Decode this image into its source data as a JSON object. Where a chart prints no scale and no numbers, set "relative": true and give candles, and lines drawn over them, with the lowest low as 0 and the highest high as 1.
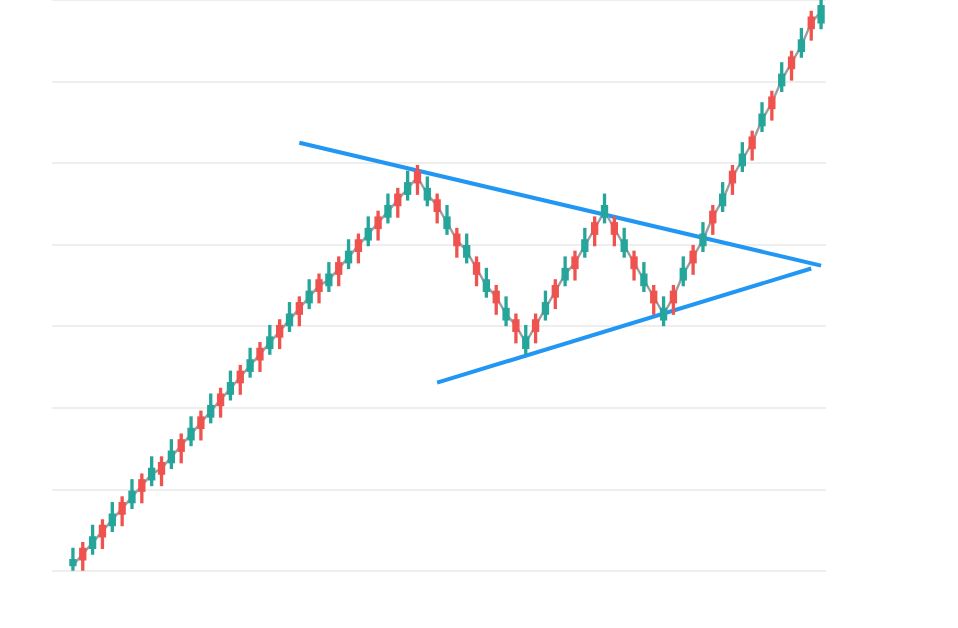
{
  "chart_data": {
    "type": "candlestick",
    "relative": true,
    "grid": "y",
    "categories": [
      null,
      null,
      null,
      null,
      null,
      null,
      null,
      null,
      null,
      null,
      null,
      null,
      null,
      null,
      null,
      null,
      null,
      null,
      null,
      null,
      null,
      null,
      null,
      null,
      null,
      null,
      null,
      null,
      null,
      null,
      null,
      null,
      null,
      null,
      null,
      null,
      null,
      null,
      null,
      null,
      null,
      null,
      null,
      null,
      null,
      null,
      null,
      null,
      null,
      null,
      null,
      null,
      null,
      null,
      null,
      null,
      null,
      null,
      null,
      null,
      null,
      null,
      null,
      null,
      null,
      null,
      null,
      null,
      null,
      null,
      null,
      null,
      null,
      null,
      null,
      null,
      null
    ],
    "ohlc": [
      [
        0.01,
        0.04,
        0.0,
        0.02
      ],
      [
        0.04,
        0.05,
        0.0,
        0.02
      ],
      [
        0.04,
        0.08,
        0.03,
        0.06
      ],
      [
        0.08,
        0.09,
        0.04,
        0.06
      ],
      [
        0.08,
        0.12,
        0.07,
        0.1
      ],
      [
        0.12,
        0.13,
        0.08,
        0.1
      ],
      [
        0.12,
        0.16,
        0.11,
        0.14
      ],
      [
        0.16,
        0.17,
        0.12,
        0.14
      ],
      [
        0.16,
        0.2,
        0.15,
        0.18
      ],
      [
        0.19,
        0.2,
        0.15,
        0.17
      ],
      [
        0.19,
        0.23,
        0.18,
        0.21
      ],
      [
        0.23,
        0.24,
        0.19,
        0.21
      ],
      [
        0.23,
        0.27,
        0.22,
        0.25
      ],
      [
        0.27,
        0.28,
        0.23,
        0.25
      ],
      [
        0.27,
        0.31,
        0.26,
        0.29
      ],
      [
        0.31,
        0.32,
        0.27,
        0.29
      ],
      [
        0.31,
        0.35,
        0.3,
        0.33
      ],
      [
        0.35,
        0.36,
        0.31,
        0.33
      ],
      [
        0.35,
        0.39,
        0.34,
        0.37
      ],
      [
        0.39,
        0.4,
        0.35,
        0.37
      ],
      [
        0.39,
        0.43,
        0.38,
        0.41
      ],
      [
        0.43,
        0.44,
        0.39,
        0.41
      ],
      [
        0.43,
        0.47,
        0.42,
        0.45
      ],
      [
        0.47,
        0.48,
        0.43,
        0.45
      ],
      [
        0.47,
        0.51,
        0.46,
        0.49
      ],
      [
        0.51,
        0.52,
        0.47,
        0.49
      ],
      [
        0.5,
        0.54,
        0.49,
        0.52
      ],
      [
        0.54,
        0.55,
        0.5,
        0.52
      ],
      [
        0.54,
        0.58,
        0.53,
        0.56
      ],
      [
        0.58,
        0.59,
        0.54,
        0.56
      ],
      [
        0.58,
        0.62,
        0.57,
        0.6
      ],
      [
        0.62,
        0.63,
        0.58,
        0.6
      ],
      [
        0.62,
        0.66,
        0.61,
        0.64
      ],
      [
        0.66,
        0.67,
        0.62,
        0.64
      ],
      [
        0.66,
        0.7,
        0.65,
        0.68
      ],
      [
        0.7,
        0.71,
        0.66,
        0.68
      ],
      [
        0.65,
        0.69,
        0.64,
        0.67
      ],
      [
        0.65,
        0.66,
        0.61,
        0.63
      ],
      [
        0.6,
        0.64,
        0.59,
        0.62
      ],
      [
        0.59,
        0.6,
        0.55,
        0.57
      ],
      [
        0.55,
        0.59,
        0.54,
        0.57
      ],
      [
        0.54,
        0.55,
        0.5,
        0.52
      ],
      [
        0.49,
        0.53,
        0.48,
        0.51
      ],
      [
        0.49,
        0.5,
        0.45,
        0.47
      ],
      [
        0.44,
        0.48,
        0.43,
        0.46
      ],
      [
        0.44,
        0.45,
        0.4,
        0.42
      ],
      [
        0.39,
        0.43,
        0.38,
        0.41
      ],
      [
        0.44,
        0.45,
        0.4,
        0.42
      ],
      [
        0.45,
        0.49,
        0.44,
        0.47
      ],
      [
        0.5,
        0.51,
        0.46,
        0.48
      ],
      [
        0.51,
        0.55,
        0.5,
        0.53
      ],
      [
        0.55,
        0.56,
        0.51,
        0.53
      ],
      [
        0.56,
        0.6,
        0.55,
        0.58
      ],
      [
        0.61,
        0.62,
        0.57,
        0.59
      ],
      [
        0.62,
        0.66,
        0.61,
        0.64
      ],
      [
        0.61,
        0.62,
        0.57,
        0.59
      ],
      [
        0.56,
        0.6,
        0.55,
        0.58
      ],
      [
        0.55,
        0.56,
        0.51,
        0.53
      ],
      [
        0.5,
        0.54,
        0.49,
        0.52
      ],
      [
        0.49,
        0.5,
        0.45,
        0.47
      ],
      [
        0.44,
        0.48,
        0.43,
        0.46
      ],
      [
        0.49,
        0.5,
        0.45,
        0.47
      ],
      [
        0.51,
        0.55,
        0.5,
        0.53
      ],
      [
        0.56,
        0.57,
        0.52,
        0.54
      ],
      [
        0.57,
        0.61,
        0.56,
        0.59
      ],
      [
        0.63,
        0.64,
        0.59,
        0.61
      ],
      [
        0.64,
        0.68,
        0.63,
        0.66
      ],
      [
        0.7,
        0.71,
        0.66,
        0.68
      ],
      [
        0.71,
        0.75,
        0.7,
        0.73
      ],
      [
        0.76,
        0.77,
        0.72,
        0.74
      ],
      [
        0.78,
        0.82,
        0.77,
        0.8
      ],
      [
        0.83,
        0.84,
        0.79,
        0.81
      ],
      [
        0.85,
        0.89,
        0.84,
        0.87
      ],
      [
        0.9,
        0.91,
        0.86,
        0.88
      ],
      [
        0.91,
        0.95,
        0.9,
        0.93
      ],
      [
        0.97,
        0.98,
        0.93,
        0.95
      ],
      [
        0.96,
        1.0,
        0.95,
        0.99
      ]
    ],
    "colors": [
      "#26a69a",
      "#ef5350",
      "#26a69a",
      "#ef5350",
      "#26a69a",
      "#ef5350",
      "#26a69a",
      "#ef5350",
      "#26a69a",
      "#ef5350",
      "#26a69a",
      "#ef5350",
      "#26a69a",
      "#ef5350",
      "#26a69a",
      "#ef5350",
      "#26a69a",
      "#ef5350",
      "#26a69a",
      "#ef5350",
      "#26a69a",
      "#ef5350",
      "#26a69a",
      "#ef5350",
      "#26a69a",
      "#ef5350",
      "#26a69a",
      "#ef5350",
      "#26a69a",
      "#ef5350",
      "#26a69a",
      "#ef5350",
      "#26a69a",
      "#ef5350",
      "#26a69a",
      "#ef5350",
      "#26a69a",
      "#ef5350",
      "#26a69a",
      "#ef5350",
      "#26a69a",
      "#ef5350",
      "#26a69a",
      "#ef5350",
      "#26a69a",
      "#ef5350",
      "#26a69a",
      "#ef5350",
      "#26a69a",
      "#ef5350",
      "#26a69a",
      "#ef5350",
      "#26a69a",
      "#ef5350",
      "#26a69a",
      "#ef5350",
      "#26a69a",
      "#ef5350",
      "#26a69a",
      "#ef5350",
      "#26a69a",
      "#ef5350",
      "#26a69a",
      "#ef5350",
      "#26a69a",
      "#ef5350",
      "#26a69a",
      "#ef5350",
      "#26a69a",
      "#ef5350",
      "#26a69a",
      "#ef5350",
      "#26a69a",
      "#ef5350",
      "#26a69a",
      "#ef5350",
      "#26a69a"
    ],
    "series": [
      {
        "type": "line",
        "color": "#9e9e9e",
        "values": [
          0.01,
          0.03,
          0.05,
          0.07,
          0.09,
          0.11,
          0.13,
          0.15,
          0.17,
          0.18,
          0.2,
          0.22,
          0.24,
          0.26,
          0.28,
          0.3,
          0.32,
          0.34,
          0.36,
          0.38,
          0.4,
          0.42,
          0.44,
          0.46,
          0.48,
          0.5,
          0.51,
          0.53,
          0.55,
          0.57,
          0.59,
          0.61,
          0.63,
          0.65,
          0.67,
          0.69,
          0.66,
          0.64,
          0.61,
          0.58,
          0.56,
          0.53,
          0.5,
          0.48,
          0.45,
          0.43,
          0.4,
          0.43,
          0.46,
          0.49,
          0.52,
          0.54,
          0.57,
          0.6,
          0.63,
          0.6,
          0.57,
          0.54,
          0.51,
          0.48,
          0.45,
          0.48,
          0.52,
          0.55,
          0.58,
          0.62,
          0.65,
          0.69,
          0.72,
          0.75,
          0.79,
          0.82,
          0.86,
          0.89,
          0.92,
          0.96,
          0.98
        ]
      },
      {
        "type": "line",
        "color": "#2196f3",
        "values": [
          null,
          null,
          null,
          null,
          null,
          null,
          null,
          null,
          null,
          null,
          null,
          null,
          null,
          null,
          null,
          null,
          null,
          null,
          null,
          null,
          null,
          null,
          null,
          0.75,
          null,
          null,
          null,
          null,
          null,
          null,
          null,
          null,
          null,
          null,
          null,
          null,
          null,
          null,
          null,
          null,
          null,
          null,
          null,
          null,
          null,
          null,
          null,
          null,
          null,
          null,
          null,
          null,
          null,
          null,
          null,
          null,
          null,
          null,
          null,
          null,
          null,
          null,
          null,
          null,
          null,
          null,
          null,
          null,
          null,
          null,
          null,
          null,
          null,
          null,
          null,
          null,
          0.535
        ]
      },
      {
        "type": "line",
        "color": "#2196f3",
        "values": [
          null,
          null,
          null,
          null,
          null,
          null,
          null,
          null,
          null,
          null,
          null,
          null,
          null,
          null,
          null,
          null,
          null,
          null,
          null,
          null,
          null,
          null,
          null,
          null,
          null,
          null,
          null,
          null,
          null,
          null,
          null,
          null,
          null,
          null,
          null,
          null,
          null,
          0.33,
          null,
          null,
          null,
          null,
          null,
          null,
          null,
          null,
          null,
          null,
          null,
          null,
          null,
          null,
          null,
          null,
          null,
          null,
          null,
          null,
          null,
          null,
          null,
          null,
          null,
          null,
          null,
          null,
          null,
          null,
          null,
          null,
          null,
          null,
          null,
          null,
          null,
          0.53,
          null
        ]
      }
    ]
  }
}
